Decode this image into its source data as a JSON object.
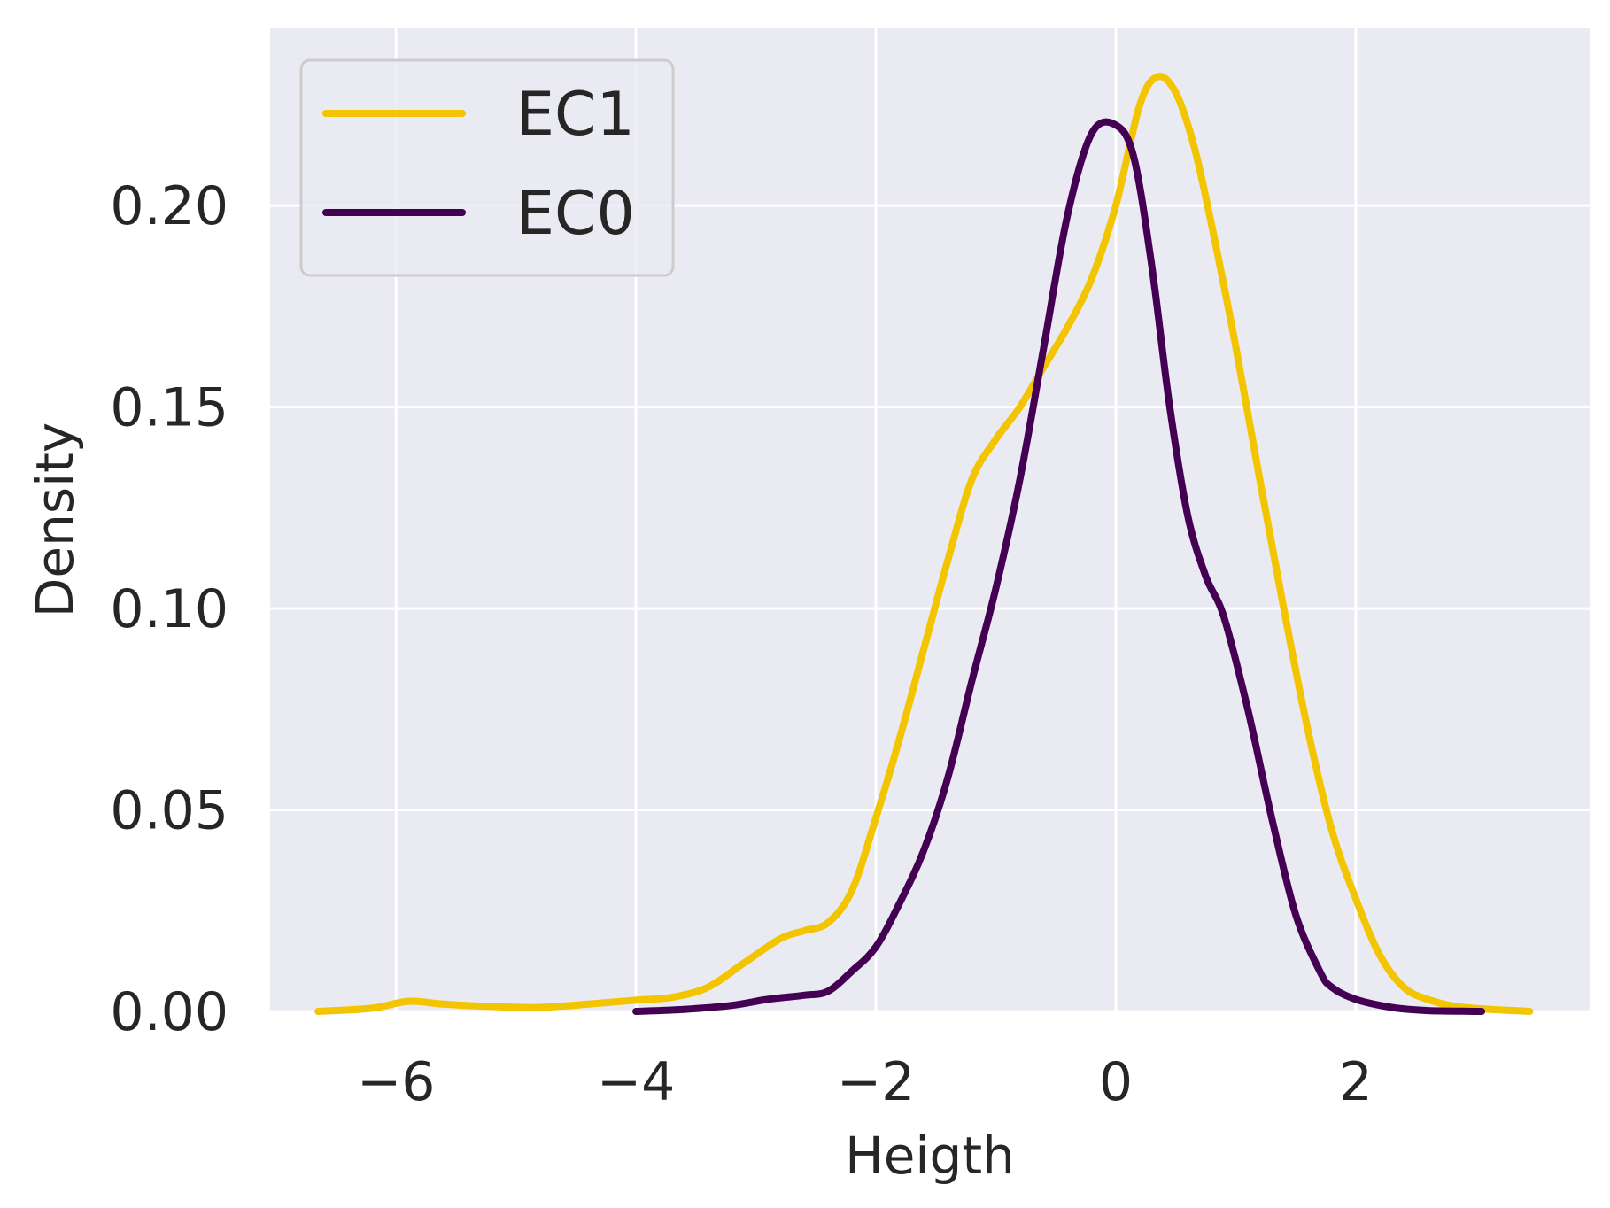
{
  "chart_data": {
    "type": "line",
    "title": "",
    "xlabel": "Heigth",
    "ylabel": "Density",
    "xlim": [
      -7.05,
      3.95
    ],
    "ylim": [
      0,
      0.244
    ],
    "xticks": [
      -6,
      -4,
      -2,
      0,
      2
    ],
    "xtick_labels": [
      "−6",
      "−4",
      "−2",
      "0",
      "2"
    ],
    "yticks": [
      0.0,
      0.05,
      0.1,
      0.15,
      0.2
    ],
    "ytick_labels": [
      "0.00",
      "0.05",
      "0.10",
      "0.15",
      "0.20"
    ],
    "grid": true,
    "legend_position": "top-left",
    "background_color": "#EAEAF2",
    "series": [
      {
        "name": "EC1",
        "color": "#F2C500",
        "x": [
          -6.65,
          -6.2,
          -5.9,
          -5.6,
          -5.2,
          -4.8,
          -4.4,
          -4.0,
          -3.7,
          -3.4,
          -3.1,
          -2.8,
          -2.6,
          -2.4,
          -2.2,
          -2.0,
          -1.8,
          -1.6,
          -1.4,
          -1.2,
          -1.0,
          -0.8,
          -0.6,
          -0.4,
          -0.2,
          0.0,
          0.2,
          0.35,
          0.5,
          0.65,
          0.8,
          1.0,
          1.2,
          1.4,
          1.6,
          1.8,
          2.0,
          2.2,
          2.4,
          2.6,
          2.9,
          3.45
        ],
        "y": [
          0.0,
          0.0008,
          0.0025,
          0.0018,
          0.0012,
          0.001,
          0.0018,
          0.0028,
          0.0035,
          0.006,
          0.012,
          0.018,
          0.02,
          0.022,
          0.03,
          0.048,
          0.068,
          0.09,
          0.112,
          0.132,
          0.142,
          0.15,
          0.16,
          0.17,
          0.182,
          0.2,
          0.225,
          0.232,
          0.228,
          0.215,
          0.195,
          0.165,
          0.132,
          0.1,
          0.07,
          0.045,
          0.028,
          0.014,
          0.006,
          0.003,
          0.001,
          0.0
        ]
      },
      {
        "name": "EC0",
        "color": "#440154",
        "x": [
          -4.0,
          -3.6,
          -3.2,
          -2.9,
          -2.6,
          -2.4,
          -2.2,
          -2.0,
          -1.8,
          -1.6,
          -1.4,
          -1.2,
          -1.0,
          -0.8,
          -0.6,
          -0.4,
          -0.2,
          0.0,
          0.15,
          0.3,
          0.45,
          0.6,
          0.75,
          0.9,
          1.1,
          1.3,
          1.5,
          1.7,
          1.8,
          2.0,
          2.3,
          2.6,
          3.05
        ],
        "y": [
          0.0,
          0.0005,
          0.0015,
          0.003,
          0.004,
          0.005,
          0.01,
          0.016,
          0.027,
          0.04,
          0.058,
          0.082,
          0.105,
          0.132,
          0.165,
          0.198,
          0.218,
          0.22,
          0.212,
          0.185,
          0.15,
          0.123,
          0.108,
          0.098,
          0.075,
          0.048,
          0.024,
          0.01,
          0.006,
          0.003,
          0.001,
          0.0002,
          0.0
        ]
      }
    ]
  }
}
